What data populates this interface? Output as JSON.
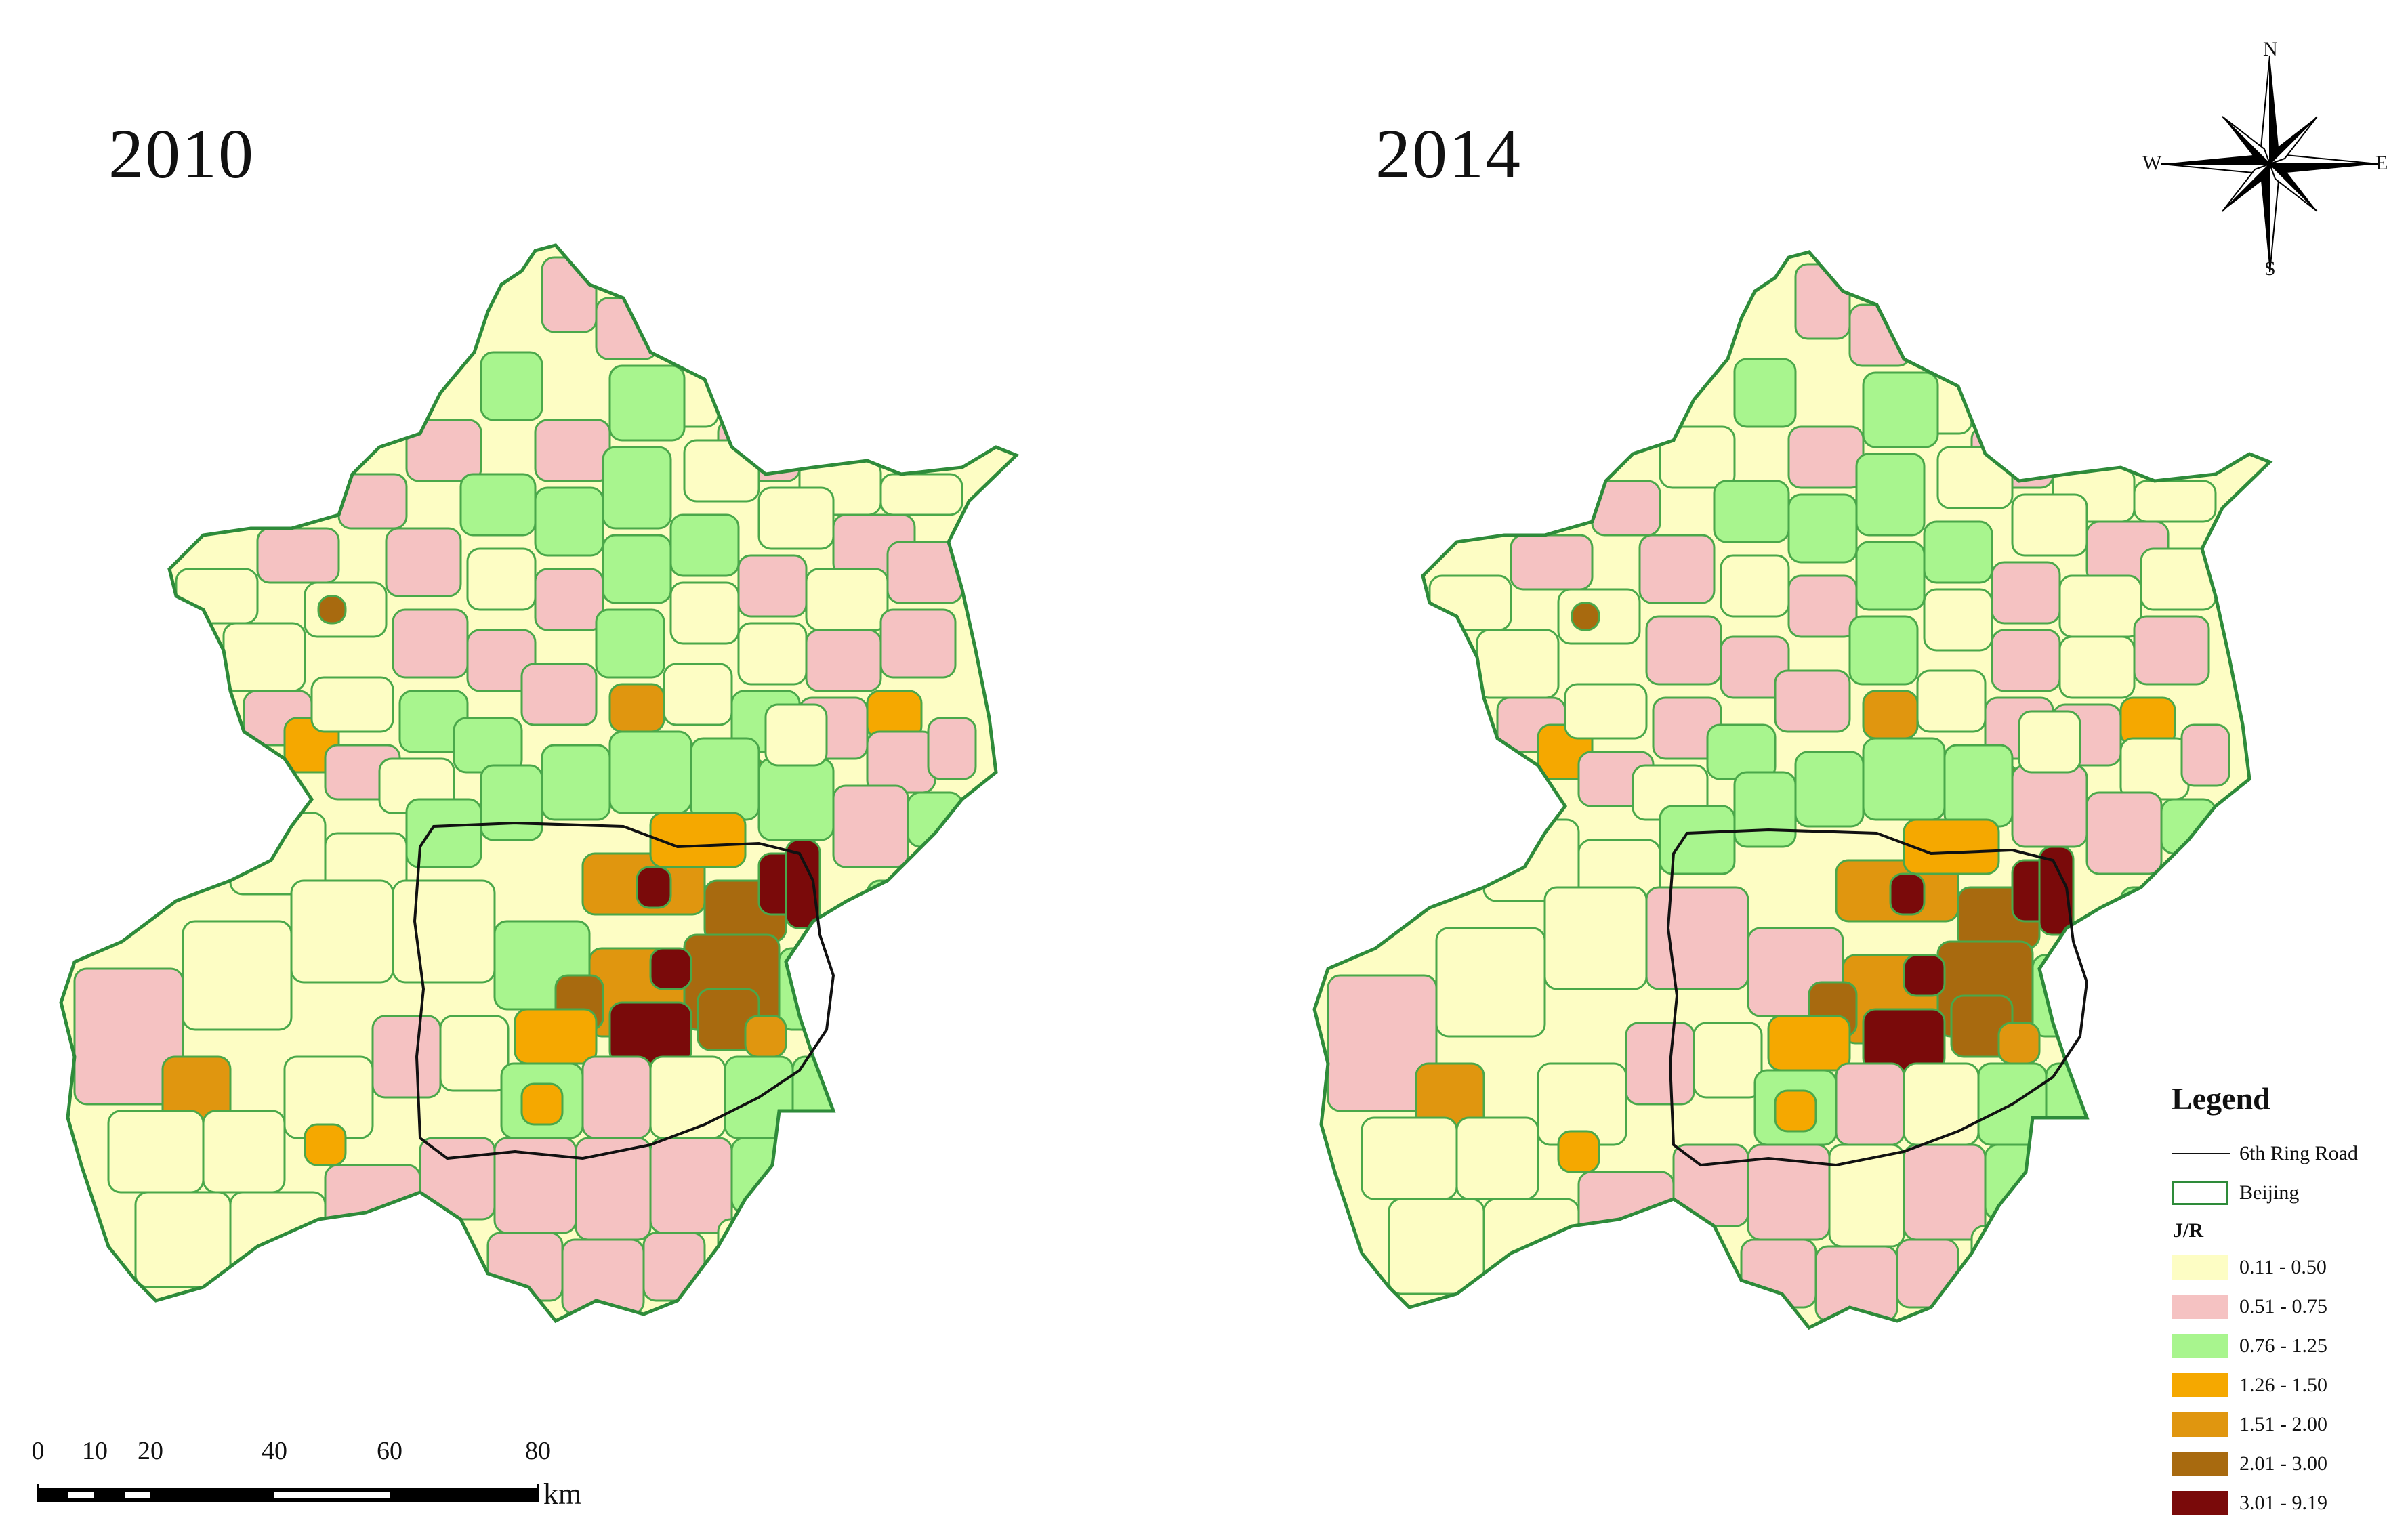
{
  "panels": {
    "left_year": "2010",
    "right_year": "2014"
  },
  "compass": {
    "north": "N",
    "south": "S",
    "east": "E",
    "west": "W"
  },
  "legend": {
    "title": "Legend",
    "ring_road_label": "6th Ring Road",
    "boundary_label": "Beijing",
    "class_title": "J/R",
    "classes": [
      {
        "label": "0.11 - 0.50",
        "color": "#fdfdc4"
      },
      {
        "label": "0.51 - 0.75",
        "color": "#f5c2c2"
      },
      {
        "label": "0.76 - 1.25",
        "color": "#a8f58e"
      },
      {
        "label": "1.26 - 1.50",
        "color": "#f5a800"
      },
      {
        "label": "1.51 - 2.00",
        "color": "#e0960f"
      },
      {
        "label": "2.01 - 3.00",
        "color": "#a86a0f"
      },
      {
        "label": "3.01 - 9.19",
        "color": "#7a0a0a"
      }
    ]
  },
  "scale": {
    "ticks": [
      "0",
      "10",
      "20",
      "40",
      "60",
      "80"
    ],
    "unit": "km"
  }
}
